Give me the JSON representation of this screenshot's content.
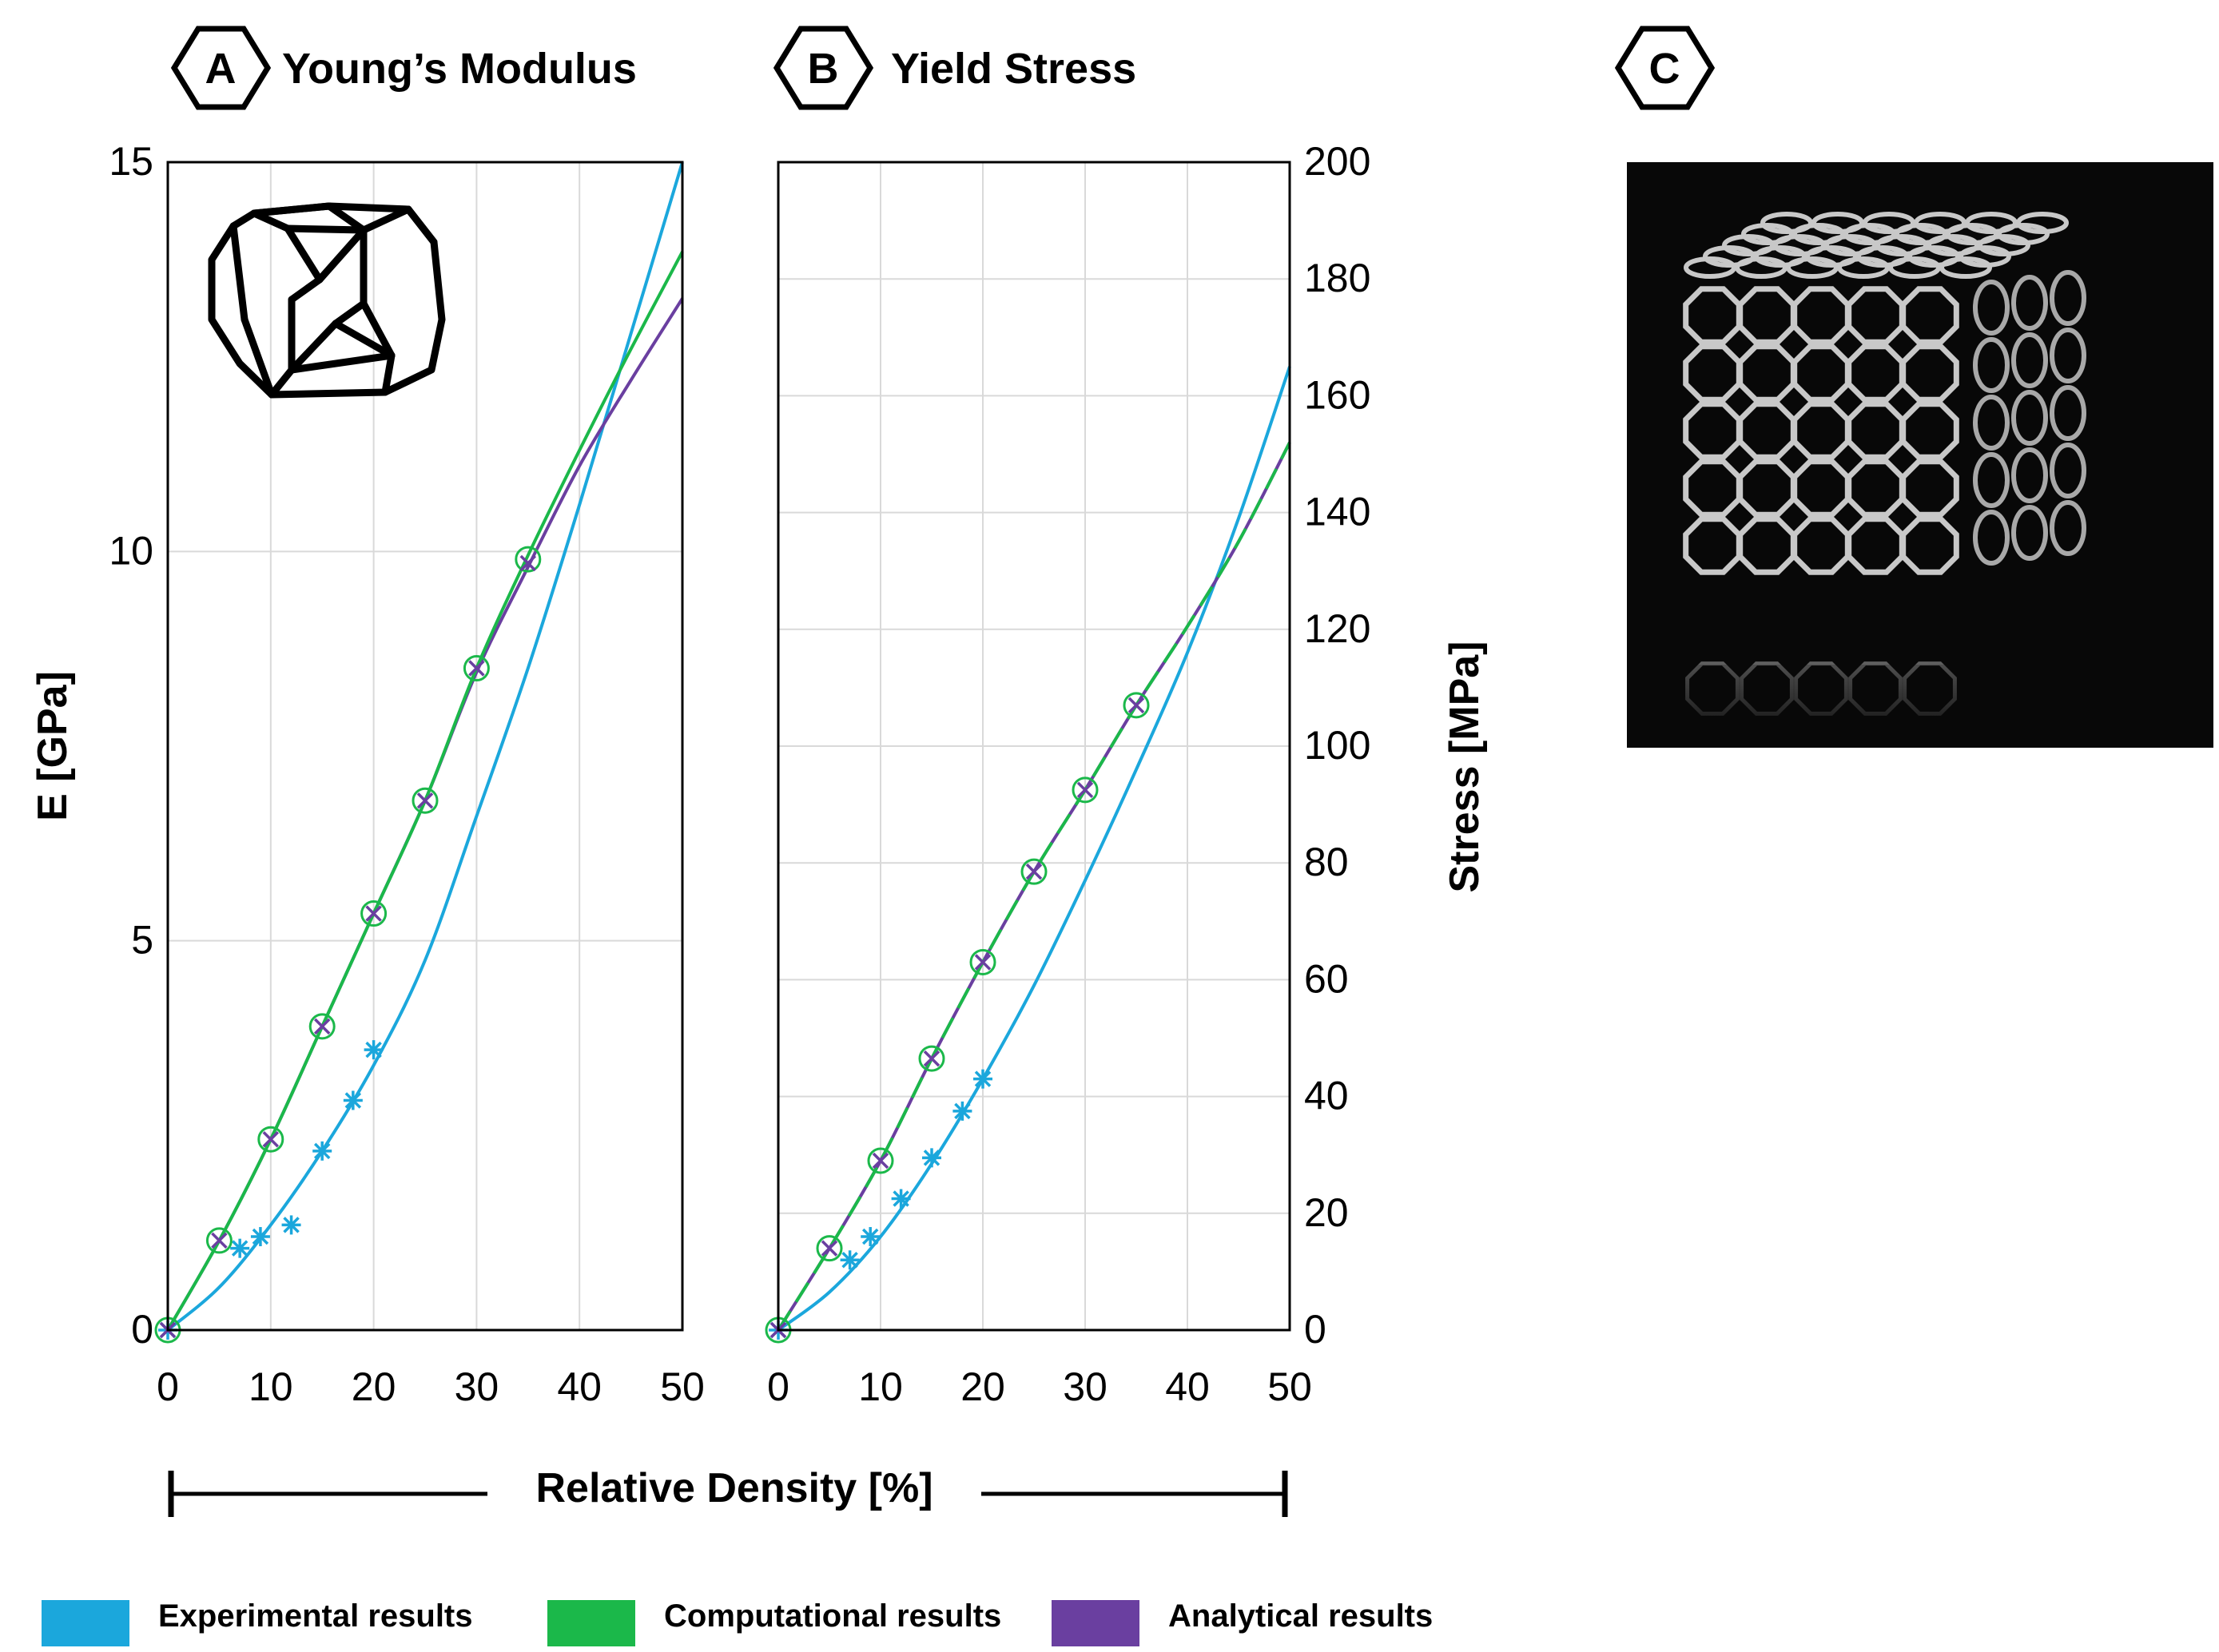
{
  "colors": {
    "experimental": "#1ba7dc",
    "computational": "#1bb84a",
    "analytical": "#6a3fa0",
    "grid": "#d9d9d9",
    "photo_background": "#080808",
    "lattice": "#c8c8c8"
  },
  "panels": {
    "A": {
      "letter": "A",
      "title": "Young’s Modulus"
    },
    "B": {
      "letter": "B",
      "title": "Yield Stress"
    },
    "C": {
      "letter": "C",
      "title": ""
    }
  },
  "shared_xlabel": "Relative Density [%]",
  "legend": [
    {
      "key": "experimental",
      "label": "Experimental results"
    },
    {
      "key": "computational",
      "label": "Computational results"
    },
    {
      "key": "analytical",
      "label": "Analytical results"
    }
  ],
  "icons": {
    "unit_cell": "truncated-octahedron-unit-cell-icon",
    "photo": "lattice-cube-photo"
  },
  "chart_data": [
    {
      "id": "A",
      "type": "line",
      "title": "Young’s Modulus",
      "xlabel": "",
      "ylabel": "E [GPa]",
      "xlim": [
        0,
        50
      ],
      "ylim": [
        0,
        15
      ],
      "xticks": [
        0,
        10,
        20,
        30,
        40,
        50
      ],
      "yticks": [
        0,
        5,
        10,
        15
      ],
      "y_axis_side": "left",
      "grid": true,
      "series": [
        {
          "key": "experimental",
          "marker": "asterisk",
          "points": [
            [
              0,
              0
            ],
            [
              7,
              1.05
            ],
            [
              9,
              1.2
            ],
            [
              12,
              1.35
            ],
            [
              15,
              2.3
            ],
            [
              18,
              2.95
            ],
            [
              20,
              3.6
            ]
          ],
          "curve": [
            [
              0,
              0
            ],
            [
              5,
              0.55
            ],
            [
              10,
              1.35
            ],
            [
              15,
              2.3
            ],
            [
              20,
              3.4
            ],
            [
              25,
              4.75
            ],
            [
              30,
              6.6
            ],
            [
              35,
              8.5
            ],
            [
              40,
              10.6
            ],
            [
              45,
              12.8
            ],
            [
              50,
              15.0
            ]
          ]
        },
        {
          "key": "computational",
          "marker": "circle",
          "points": [
            [
              0,
              0
            ],
            [
              5,
              1.15
            ],
            [
              10,
              2.45
            ],
            [
              15,
              3.9
            ],
            [
              20,
              5.35
            ],
            [
              25,
              6.8
            ],
            [
              30,
              8.5
            ],
            [
              35,
              9.9
            ]
          ],
          "curve": [
            [
              0,
              0
            ],
            [
              5,
              1.15
            ],
            [
              10,
              2.45
            ],
            [
              15,
              3.9
            ],
            [
              20,
              5.35
            ],
            [
              25,
              6.8
            ],
            [
              30,
              8.5
            ],
            [
              35,
              9.95
            ],
            [
              40,
              11.3
            ],
            [
              45,
              12.6
            ],
            [
              50,
              13.85
            ]
          ]
        },
        {
          "key": "analytical",
          "marker": "x",
          "points": [
            [
              0,
              0
            ],
            [
              5,
              1.15
            ],
            [
              10,
              2.45
            ],
            [
              15,
              3.9
            ],
            [
              20,
              5.35
            ],
            [
              25,
              6.8
            ],
            [
              30,
              8.5
            ],
            [
              35,
              9.85
            ]
          ],
          "curve": [
            [
              0,
              0
            ],
            [
              5,
              1.15
            ],
            [
              10,
              2.45
            ],
            [
              15,
              3.9
            ],
            [
              20,
              5.35
            ],
            [
              25,
              6.8
            ],
            [
              30,
              8.45
            ],
            [
              35,
              9.8
            ],
            [
              40,
              11.1
            ],
            [
              45,
              12.2
            ],
            [
              50,
              13.25
            ]
          ]
        }
      ]
    },
    {
      "id": "B",
      "type": "line",
      "title": "Yield Stress",
      "xlabel": "",
      "ylabel": "Stress [MPa]",
      "xlim": [
        0,
        50
      ],
      "ylim": [
        0,
        200
      ],
      "xticks": [
        0,
        10,
        20,
        30,
        40,
        50
      ],
      "yticks": [
        0,
        20,
        40,
        60,
        80,
        100,
        120,
        140,
        160,
        180,
        200
      ],
      "y_axis_side": "right",
      "grid": true,
      "series": [
        {
          "key": "experimental",
          "marker": "asterisk",
          "points": [
            [
              0,
              0
            ],
            [
              7,
              12
            ],
            [
              9,
              16
            ],
            [
              12,
              22.5
            ],
            [
              15,
              29.5
            ],
            [
              18,
              37.5
            ],
            [
              20,
              43
            ]
          ],
          "curve": [
            [
              0,
              0
            ],
            [
              5,
              6.5
            ],
            [
              10,
              16
            ],
            [
              15,
              28.5
            ],
            [
              20,
              43
            ],
            [
              25,
              59
            ],
            [
              30,
              77
            ],
            [
              35,
              96
            ],
            [
              40,
              116
            ],
            [
              45,
              139
            ],
            [
              50,
              165
            ]
          ]
        },
        {
          "key": "computational",
          "marker": "circle",
          "points": [
            [
              0,
              0
            ],
            [
              5,
              14
            ],
            [
              10,
              29
            ],
            [
              15,
              46.5
            ],
            [
              20,
              63
            ],
            [
              25,
              78.5
            ],
            [
              30,
              92.5
            ],
            [
              35,
              107
            ]
          ],
          "curve": [
            [
              0,
              0
            ],
            [
              5,
              14
            ],
            [
              10,
              29
            ],
            [
              15,
              46.5
            ],
            [
              20,
              63
            ],
            [
              25,
              78.5
            ],
            [
              30,
              92.5
            ],
            [
              35,
              107
            ],
            [
              40,
              120.5
            ],
            [
              45,
              135
            ],
            [
              50,
              152
            ]
          ]
        },
        {
          "key": "analytical",
          "marker": "x",
          "points": [
            [
              0,
              0
            ],
            [
              5,
              14
            ],
            [
              10,
              29
            ],
            [
              15,
              46.5
            ],
            [
              20,
              63
            ],
            [
              25,
              78.5
            ],
            [
              30,
              92.5
            ],
            [
              35,
              107
            ]
          ],
          "curve": [
            [
              0,
              0
            ],
            [
              5,
              14
            ],
            [
              10,
              29
            ],
            [
              15,
              46.5
            ],
            [
              20,
              63
            ],
            [
              25,
              78.5
            ],
            [
              30,
              92.5
            ],
            [
              35,
              107
            ],
            [
              40,
              120.5
            ],
            [
              45,
              135
            ],
            [
              50,
              152
            ]
          ]
        }
      ]
    }
  ]
}
